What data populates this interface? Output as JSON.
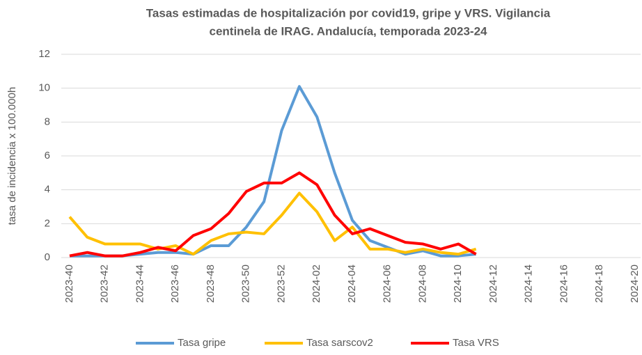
{
  "chart_data": {
    "type": "line",
    "title": [
      "Tasas estimadas de hospitalización  por covid19, gripe y VRS. Vigilancia",
      "centinela de IRAG. Andalucía, temporada 2023-24"
    ],
    "y_label": "tasa de incidencia x 100.000h",
    "categories": [
      "2023-40",
      null,
      "2023-42",
      null,
      "2023-44",
      null,
      "2023-46",
      null,
      "2023-48",
      null,
      "2023-50",
      null,
      "2023-52",
      null,
      "2024-02",
      null,
      "2024-04",
      null,
      "2024-06",
      null,
      "2024-08",
      null,
      "2024-10",
      null,
      "2024-12",
      null,
      "2024-14",
      null,
      "2024-16",
      null,
      "2024-18",
      null,
      "2024-20"
    ],
    "series": [
      {
        "name": "Tasa gripe",
        "color": "#5b9bd5",
        "values": [
          0.1,
          0.1,
          0.1,
          0.1,
          0.2,
          0.3,
          0.3,
          0.2,
          0.7,
          0.7,
          1.8,
          3.3,
          7.5,
          10.1,
          8.3,
          5.0,
          2.2,
          1.0,
          0.6,
          0.2,
          0.4,
          0.1,
          0.1,
          0.2,
          null,
          null,
          null,
          null,
          null,
          null,
          null,
          null,
          null
        ]
      },
      {
        "name": "Tasa sarscov2",
        "color": "#ffc000",
        "values": [
          2.4,
          1.2,
          0.8,
          0.8,
          0.8,
          0.5,
          0.7,
          0.2,
          1.0,
          1.4,
          1.5,
          1.4,
          2.5,
          3.8,
          2.7,
          1.0,
          1.8,
          0.5,
          0.5,
          0.3,
          0.5,
          0.3,
          0.2,
          0.5,
          null,
          null,
          null,
          null,
          null,
          null,
          null,
          null,
          null
        ]
      },
      {
        "name": "Tasa VRS",
        "color": "#ff0000",
        "values": [
          0.1,
          0.3,
          0.1,
          0.1,
          0.3,
          0.6,
          0.4,
          1.3,
          1.7,
          2.6,
          3.9,
          4.4,
          4.4,
          5.0,
          4.3,
          2.5,
          1.4,
          1.7,
          1.3,
          0.9,
          0.8,
          0.5,
          0.8,
          0.2,
          null,
          null,
          null,
          null,
          null,
          null,
          null,
          null,
          null
        ]
      }
    ],
    "ylim": [
      0,
      12
    ],
    "yticks": [
      0,
      2,
      4,
      6,
      8,
      10,
      12
    ],
    "grid": true,
    "legend": "bottom"
  }
}
